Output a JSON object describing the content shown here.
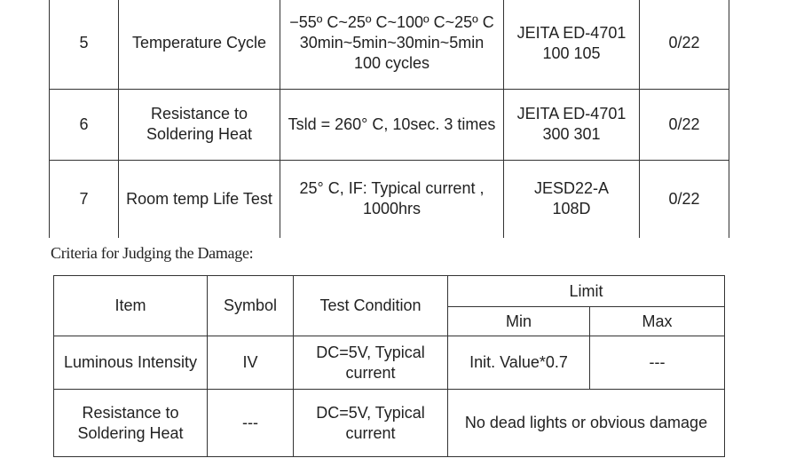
{
  "reliability_table": {
    "rows": [
      [
        "5",
        "Temperature Cycle",
        "−55º C~25º C~100º C~25º C\n30min~5min~30min~5min\n100 cycles",
        "JEITA ED-4701\n100 105",
        "0/22"
      ],
      [
        "6",
        "Resistance to Soldering Heat",
        "Tsld = 260° C, 10sec. 3 times",
        "JEITA ED-4701\n300 301",
        "0/22"
      ],
      [
        "7",
        "Room temp Life Test",
        "25° C, IF: Typical current , 1000hrs",
        "JESD22-A\n108D",
        "0/22"
      ]
    ]
  },
  "caption": "Criteria for Judging the Damage:",
  "criteria_table": {
    "header": {
      "item": "Item",
      "symbol": "Symbol",
      "condition": "Test Condition",
      "limit": "Limit",
      "min": "Min",
      "max": "Max"
    },
    "rows": [
      [
        "Luminous Intensity",
        "IV",
        "DC=5V, Typical current",
        "Init. Value*0.7",
        "---"
      ],
      [
        "Resistance to Soldering Heat",
        "---",
        "DC=5V, Typical current",
        "No dead lights or obvious damage"
      ]
    ]
  }
}
